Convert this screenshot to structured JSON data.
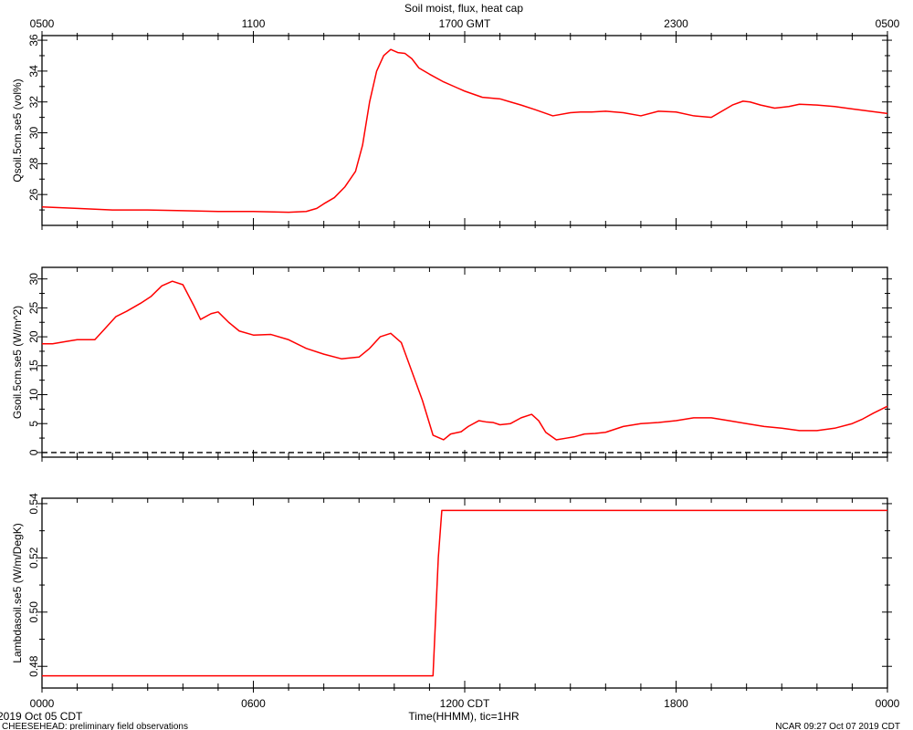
{
  "title": "Soil moist, flux, heat cap",
  "top_axis": {
    "ticks": [
      {
        "h": 0,
        "label": "0500"
      },
      {
        "h": 6,
        "label": "1100"
      },
      {
        "h": 12,
        "label": "1700 GMT"
      },
      {
        "h": 18,
        "label": "2300"
      },
      {
        "h": 24,
        "label": "0500"
      }
    ]
  },
  "bottom_axis": {
    "title": "Time(HHMM), tic=1HR",
    "ticks": [
      {
        "h": 0,
        "label": "0000"
      },
      {
        "h": 6,
        "label": "0600"
      },
      {
        "h": 12,
        "label": "1200 CDT"
      },
      {
        "h": 18,
        "label": "1800"
      },
      {
        "h": 24,
        "label": "0000"
      }
    ]
  },
  "footer": {
    "date": "2019 Oct 05 CDT",
    "project": "CHEESEHEAD: preliminary field observations",
    "credit": "NCAR 09:27 Oct 07 2019 CDT"
  },
  "colors": {
    "series": "#ff0000",
    "axis": "#000000",
    "zero_line": "#000000"
  },
  "chart_data": [
    {
      "type": "line",
      "ylabel": "Qsoil.5cm.se5 (vol%)",
      "xlim": [
        0,
        24
      ],
      "ylim": [
        24,
        36.3
      ],
      "yticks": [
        26,
        28,
        30,
        32,
        34,
        36
      ],
      "x": [
        0,
        1,
        2,
        3,
        4,
        5,
        6,
        7,
        7.5,
        7.8,
        8.0,
        8.3,
        8.6,
        8.9,
        9.1,
        9.3,
        9.5,
        9.7,
        9.9,
        10.1,
        10.3,
        10.5,
        10.7,
        11,
        11.4,
        11.8,
        12.0,
        12.5,
        13,
        13.3,
        13.6,
        14,
        14.5,
        15,
        15.3,
        15.6,
        16,
        16.5,
        17,
        17.5,
        18,
        18.5,
        19,
        19.6,
        19.9,
        20.1,
        20.4,
        20.8,
        21.2,
        21.5,
        22,
        22.5,
        23,
        23.5,
        24
      ],
      "y": [
        25.2,
        25.1,
        25.0,
        25.0,
        24.95,
        24.9,
        24.9,
        24.85,
        24.9,
        25.1,
        25.4,
        25.8,
        26.5,
        27.5,
        29.2,
        32.0,
        34.0,
        35.0,
        35.4,
        35.2,
        35.15,
        34.8,
        34.2,
        33.8,
        33.3,
        32.9,
        32.7,
        32.3,
        32.2,
        32.0,
        31.8,
        31.5,
        31.1,
        31.3,
        31.35,
        31.35,
        31.4,
        31.3,
        31.1,
        31.4,
        31.35,
        31.1,
        31.0,
        31.8,
        32.05,
        32.0,
        31.8,
        31.6,
        31.7,
        31.85,
        31.8,
        31.7,
        31.55,
        31.4,
        31.25
      ],
      "zero_line": false
    },
    {
      "type": "line",
      "ylabel": "Gsoil.5cm.se5 (W/m^2)",
      "xlim": [
        0,
        24
      ],
      "ylim": [
        -0.8,
        32
      ],
      "yticks": [
        0,
        5,
        10,
        15,
        20,
        25,
        30
      ],
      "x": [
        0,
        0.3,
        0.7,
        1.0,
        1.5,
        1.8,
        2.1,
        2.4,
        2.8,
        3.1,
        3.4,
        3.7,
        4.0,
        4.3,
        4.5,
        4.8,
        5.0,
        5.3,
        5.6,
        6.0,
        6.5,
        7.0,
        7.5,
        8.0,
        8.5,
        9.0,
        9.3,
        9.6,
        9.9,
        10.2,
        10.5,
        10.8,
        11.1,
        11.4,
        11.6,
        11.9,
        12.1,
        12.4,
        12.6,
        12.8,
        13.0,
        13.3,
        13.6,
        13.9,
        14.1,
        14.3,
        14.6,
        14.9,
        15.1,
        15.4,
        15.7,
        16.0,
        16.5,
        17.0,
        17.5,
        18.0,
        18.5,
        19.0,
        19.5,
        20.0,
        20.5,
        21.0,
        21.5,
        22.0,
        22.5,
        23.0,
        23.3,
        23.6,
        24.0
      ],
      "y": [
        18.8,
        18.8,
        19.2,
        19.5,
        19.5,
        21.5,
        23.5,
        24.4,
        25.8,
        27.0,
        28.8,
        29.6,
        29.0,
        25.5,
        23.0,
        24.0,
        24.3,
        22.5,
        21.0,
        20.3,
        20.4,
        19.5,
        18.0,
        17.0,
        16.2,
        16.5,
        18.0,
        20.0,
        20.6,
        19.0,
        14.0,
        9.0,
        3.0,
        2.2,
        3.2,
        3.6,
        4.5,
        5.5,
        5.3,
        5.2,
        4.8,
        5.0,
        6.0,
        6.6,
        5.5,
        3.5,
        2.2,
        2.5,
        2.7,
        3.2,
        3.3,
        3.5,
        4.5,
        5.0,
        5.2,
        5.5,
        6.0,
        6.0,
        5.5,
        5.0,
        4.5,
        4.2,
        3.8,
        3.8,
        4.2,
        5.0,
        5.8,
        6.8,
        8.0
      ],
      "zero_line": true
    },
    {
      "type": "line",
      "ylabel": "Lambdasoil.se5 (W/m/DegK)",
      "xlim": [
        0,
        24
      ],
      "ylim": [
        0.472,
        0.542
      ],
      "yticks": [
        0.48,
        0.5,
        0.52,
        0.54
      ],
      "x": [
        0,
        11.1,
        11.25,
        11.35,
        24
      ],
      "y": [
        0.4765,
        0.4765,
        0.52,
        0.5375,
        0.5375
      ],
      "zero_line": false
    }
  ]
}
